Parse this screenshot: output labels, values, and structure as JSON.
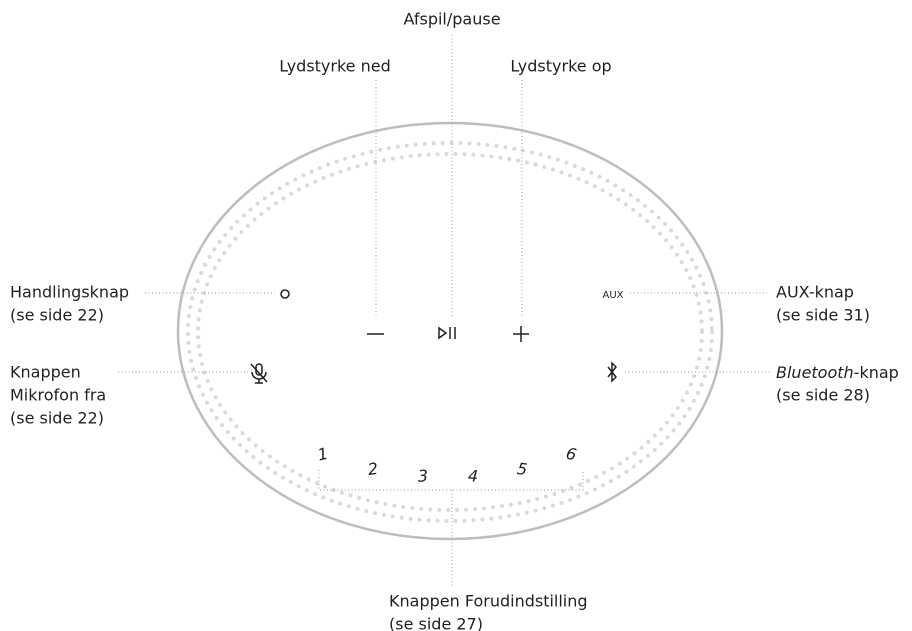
{
  "callouts": {
    "play_pause": "Afspil/pause",
    "volume_down": "Lydstyrke ned",
    "volume_up": "Lydstyrke op",
    "action": {
      "name": "Handlingsknap",
      "ref": "(se side 22)"
    },
    "aux": {
      "name": "AUX-knap",
      "ref": "(se side 31)"
    },
    "mic_off": {
      "name": [
        "Knappen",
        "Mikrofon fra"
      ],
      "ref": "(se side 22)"
    },
    "bluetooth": {
      "name_italic": "Bluetooth",
      "name_rest": "-knap",
      "ref": "(se side 28)"
    },
    "preset": {
      "name": "Knappen Forudindstilling",
      "ref": "(se side 27)"
    }
  },
  "device": {
    "aux_label": "AUX",
    "presets": [
      "1",
      "2",
      "3",
      "4",
      "5",
      "6"
    ]
  }
}
